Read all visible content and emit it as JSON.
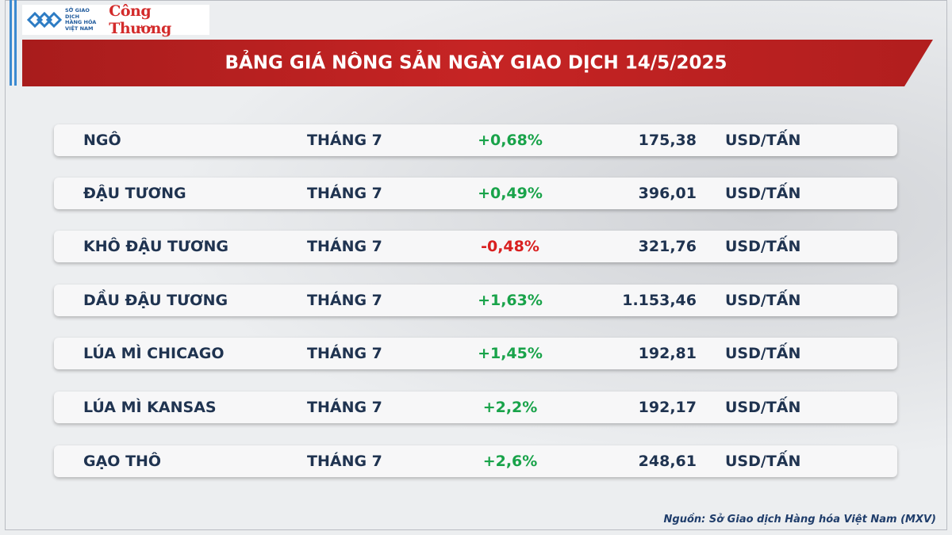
{
  "header": {
    "logo_lines": [
      "SỞ GIAO DỊCH",
      "HÀNG HÓA",
      "VIỆT NAM"
    ],
    "brand": "Công Thương",
    "title": "BẢNG GIÁ NÔNG SẢN NGÀY GIAO DỊCH 14/5/2025"
  },
  "table": {
    "rows": [
      [
        "NGÔ",
        "THÁNG 7",
        "+0,68%",
        "175,38",
        "USD/TẤN"
      ],
      [
        "ĐẬU TƯƠNG",
        "THÁNG 7",
        "+0,49%",
        "396,01",
        "USD/TẤN"
      ],
      [
        "KHÔ ĐẬU TƯƠNG",
        "THÁNG 7",
        "-0,48%",
        "321,76",
        "USD/TẤN"
      ],
      [
        "DẦU ĐẬU TƯƠNG",
        "THÁNG 7",
        "+1,63%",
        "1.153,46",
        "USD/TẤN"
      ],
      [
        "LÚA MÌ CHICAGO",
        "THÁNG 7",
        "+1,45%",
        "192,81",
        "USD/TẤN"
      ],
      [
        "LÚA MÌ KANSAS",
        "THÁNG 7",
        "+2,2%",
        "192,17",
        "USD/TẤN"
      ],
      [
        "GẠO THÔ",
        "THÁNG 7",
        "+2,6%",
        "248,61",
        "USD/TẤN"
      ]
    ]
  },
  "footer": {
    "source": "Nguồn: Sở Giao dịch Hàng hóa Việt Nam (MXV)"
  }
}
